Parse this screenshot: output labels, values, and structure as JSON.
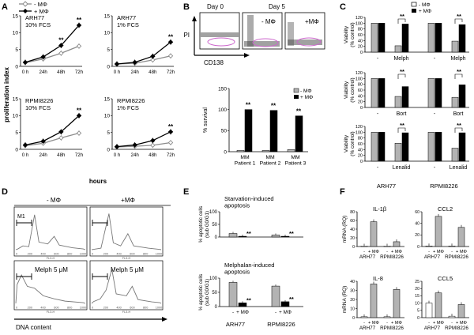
{
  "figure": {
    "panel_letters": [
      "A",
      "B",
      "C",
      "D",
      "E",
      "F"
    ]
  },
  "panelA": {
    "legend": [
      "- MΦ",
      "+ MΦ"
    ],
    "ylabel": "proliferation index",
    "xlabel": "hours",
    "chart_data": [
      {
        "type": "line",
        "cell_line": "ARH77",
        "condition": "10% FCS",
        "categories": [
          "0 h",
          "24h",
          "48h",
          "72h"
        ],
        "ylim": [
          0,
          15
        ],
        "yticks": [
          0,
          5,
          10,
          15
        ],
        "series": [
          {
            "name": "- MΦ",
            "values": [
              1.1,
              2.2,
              3.9,
              6.0
            ]
          },
          {
            "name": "+ MΦ",
            "values": [
              1.2,
              2.8,
              6.2,
              12.2
            ]
          }
        ],
        "annotations": [
          {
            "at": "48h",
            "text": "**"
          },
          {
            "at": "72h",
            "text": "**"
          }
        ]
      },
      {
        "type": "line",
        "cell_line": "ARH77",
        "condition": "1% FCS",
        "categories": [
          "0 h",
          "24h",
          "48h",
          "72h"
        ],
        "ylim": [
          0,
          15
        ],
        "yticks": [
          0,
          5,
          10,
          15
        ],
        "series": [
          {
            "name": "- MΦ",
            "values": [
              0.7,
              0.9,
              1.9,
              3.1
            ]
          },
          {
            "name": "+ MΦ",
            "values": [
              0.7,
              1.2,
              3.0,
              7.2
            ]
          }
        ],
        "annotations": [
          {
            "at": "72h",
            "text": "**"
          }
        ]
      },
      {
        "type": "line",
        "cell_line": "RPMI8226",
        "condition": "10% FCS",
        "categories": [
          "0 h",
          "24h",
          "48h",
          "72h"
        ],
        "ylim": [
          0,
          15
        ],
        "yticks": [
          0,
          5,
          10,
          15
        ],
        "series": [
          {
            "name": "- MΦ",
            "values": [
              1.1,
              1.8,
              3.4,
              4.8
            ]
          },
          {
            "name": "+ MΦ",
            "values": [
              1.3,
              2.4,
              5.2,
              10.0
            ]
          }
        ],
        "annotations": [
          {
            "at": "72h",
            "text": "**"
          }
        ]
      },
      {
        "type": "line",
        "cell_line": "RPMI8226",
        "condition": "1% FCS",
        "categories": [
          "0 h",
          "24h",
          "48h",
          "72h"
        ],
        "ylim": [
          0,
          15
        ],
        "yticks": [
          0,
          5,
          10,
          15
        ],
        "series": [
          {
            "name": "- MΦ",
            "values": [
              0.7,
              0.9,
              1.2,
              2.0
            ]
          },
          {
            "name": "+ MΦ",
            "values": [
              0.8,
              1.3,
              2.6,
              5.2
            ]
          }
        ],
        "annotations": [
          {
            "at": "72h",
            "text": "**"
          }
        ]
      }
    ]
  },
  "panelB": {
    "day0_label": "Day 0",
    "day5_label": "Day 5",
    "minus_label": "- MΦ",
    "plus_label": "+MΦ",
    "y_axis": "PI",
    "x_axis": "CD138",
    "chart_data": {
      "type": "bar",
      "categories": [
        "MM\nPatient 1",
        "MM\nPatient 2",
        "MM\nPatient 3"
      ],
      "ylabel": "% survival",
      "ylim": [
        0,
        150
      ],
      "yticks": [
        0,
        50,
        100,
        150
      ],
      "series": [
        {
          "name": "- MΦ",
          "values": [
            3,
            3,
            5
          ]
        },
        {
          "name": "+ MΦ",
          "values": [
            100,
            98,
            85
          ]
        }
      ],
      "annotations": [
        "**",
        "**",
        "**"
      ]
    }
  },
  "panelC": {
    "legend": [
      "- MΦ",
      "+ MΦ"
    ],
    "ylabel_line1": "Viability",
    "ylabel_line2": "(% control)",
    "cell_lines": [
      "ARH77",
      "RPMI8226"
    ],
    "chart_data": [
      {
        "type": "bar",
        "drug": "Melph",
        "ylim": [
          0,
          120
        ],
        "yticks": [
          0,
          20,
          40,
          60,
          80,
          100,
          120
        ],
        "categories": [
          "-",
          "Melph",
          "-",
          "Melph"
        ],
        "series": [
          {
            "name": "- MΦ",
            "values": [
              100,
              22,
              100,
              38
            ]
          },
          {
            "name": "+ MΦ",
            "values": [
              100,
              97,
              100,
              95
            ]
          }
        ],
        "annotations": [
          "**",
          "**"
        ]
      },
      {
        "type": "bar",
        "drug": "Bort",
        "ylim": [
          0,
          120
        ],
        "yticks": [
          0,
          20,
          40,
          60,
          80,
          100,
          120
        ],
        "categories": [
          "-",
          "Bort",
          "-",
          "Bort"
        ],
        "series": [
          {
            "name": "- MΦ",
            "values": [
              100,
              38,
              100,
              35
            ]
          },
          {
            "name": "+ MΦ",
            "values": [
              100,
              72,
              100,
              78
            ]
          }
        ],
        "annotations": [
          "**",
          "**"
        ]
      },
      {
        "type": "bar",
        "drug": "Lenalid",
        "ylim": [
          0,
          120
        ],
        "yticks": [
          0,
          20,
          40,
          60,
          80,
          100,
          120
        ],
        "categories": [
          "-",
          "Lenalid",
          "-",
          "Lenalid"
        ],
        "series": [
          {
            "name": "- MΦ",
            "values": [
              100,
              62,
              100,
              45
            ]
          },
          {
            "name": "+ MΦ",
            "values": [
              100,
              98,
              100,
              98
            ]
          }
        ],
        "annotations": [
          "**",
          "**"
        ]
      }
    ]
  },
  "panelD": {
    "col_minus": "- MΦ",
    "col_plus": "+MΦ",
    "gate_label": "M1",
    "treat_label": "Melph 5 μM",
    "xlabel": "DNA content",
    "fl_label": "FL3-H",
    "ticks": [
      "0",
      "200",
      "400",
      "600",
      "800",
      "1000"
    ]
  },
  "panelE": {
    "ylabel_line1": "% apoptotic cells",
    "ylabel_line2": "(sub G0/G1)",
    "cell_lines": [
      "ARH77",
      "RPMI8226"
    ],
    "chart_data": [
      {
        "type": "bar",
        "title": "Starvation-induced\napoptosis",
        "ylim": [
          0,
          100
        ],
        "yticks": [
          0,
          50,
          100
        ],
        "categories": [
          "-",
          "+ MΦ",
          "-",
          "+ MΦ"
        ],
        "values": [
          14,
          3,
          8,
          3
        ],
        "annotations": [
          "**",
          "**"
        ]
      },
      {
        "type": "bar",
        "title": "Melphalan-induced\napoptosis",
        "ylim": [
          0,
          100
        ],
        "yticks": [
          0,
          50,
          100
        ],
        "categories": [
          "-",
          "+ MΦ",
          "-",
          "+ MΦ"
        ],
        "values": [
          85,
          13,
          72,
          17
        ],
        "annotations": [
          "**",
          "**"
        ]
      }
    ]
  },
  "panelF": {
    "ylabel": "mRNA (RQ)",
    "cell_lines": [
      "ARH77",
      "RPMI8226"
    ],
    "chart_data": [
      {
        "type": "bar",
        "title": "IL-1β",
        "ylim": [
          0,
          80
        ],
        "yticks": [
          0,
          20,
          40,
          60,
          80
        ],
        "categories": [
          "-",
          "+ MΦ",
          "-",
          "+ MΦ"
        ],
        "values": [
          1,
          57,
          1,
          11
        ]
      },
      {
        "type": "bar",
        "title": "CCL2",
        "ylim": [
          0,
          60
        ],
        "yticks": [
          0,
          20,
          40,
          60
        ],
        "categories": [
          "-",
          "+ MΦ",
          "-",
          "+ MΦ"
        ],
        "values": [
          1,
          52,
          1,
          33
        ]
      },
      {
        "type": "bar",
        "title": "IL-8",
        "ylim": [
          0,
          40
        ],
        "yticks": [
          0,
          10,
          20,
          30,
          40
        ],
        "categories": [
          "-",
          "+ MΦ",
          "-",
          "+ MΦ"
        ],
        "values": [
          1,
          37,
          1,
          31
        ]
      },
      {
        "type": "bar",
        "title": "CCL5",
        "ylim": [
          0,
          25
        ],
        "yticks": [
          0,
          5,
          10,
          15,
          20,
          25
        ],
        "categories": [
          "-",
          "+ MΦ",
          "-",
          "+ MΦ"
        ],
        "values": [
          10,
          17,
          1,
          9
        ]
      }
    ]
  },
  "colors": {
    "minus": "#b3b3b3",
    "plus": "#000000",
    "line_minus": "#8c8c8c",
    "line_plus": "#000000",
    "gate": "#cc66cc"
  }
}
